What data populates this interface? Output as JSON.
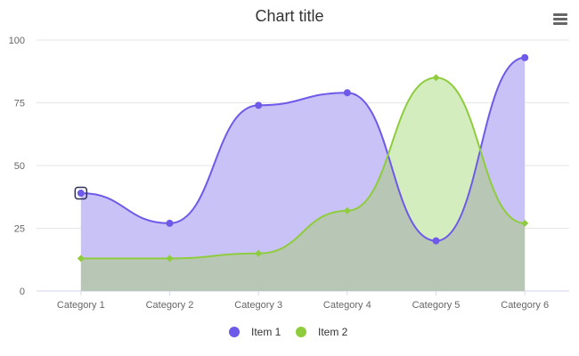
{
  "chart_data": {
    "type": "area",
    "title": "Chart title",
    "xlabel": "",
    "ylabel": "",
    "categories": [
      "Category 1",
      "Category 2",
      "Category 3",
      "Category 4",
      "Category 5",
      "Category 6"
    ],
    "ylim": [
      0,
      100
    ],
    "yticks": [
      0,
      25,
      50,
      75,
      100
    ],
    "grid": true,
    "legend_position": "bottom",
    "series": [
      {
        "name": "Item 1",
        "values": [
          39,
          27,
          74,
          79,
          20,
          93
        ],
        "color": "#6d5ae8",
        "fill": "#c9c2f7",
        "marker": "circle"
      },
      {
        "name": "Item 2",
        "values": [
          13,
          13,
          15,
          32,
          85,
          27
        ],
        "color": "#8fcc3d",
        "fill": "#d4edbf",
        "marker": "diamond"
      }
    ],
    "overlap_fill": "#b8c7b5",
    "highlighted_point": {
      "series": 0,
      "index": 0
    }
  },
  "toolbar": {
    "menu_icon": "hamburger-menu-icon"
  }
}
